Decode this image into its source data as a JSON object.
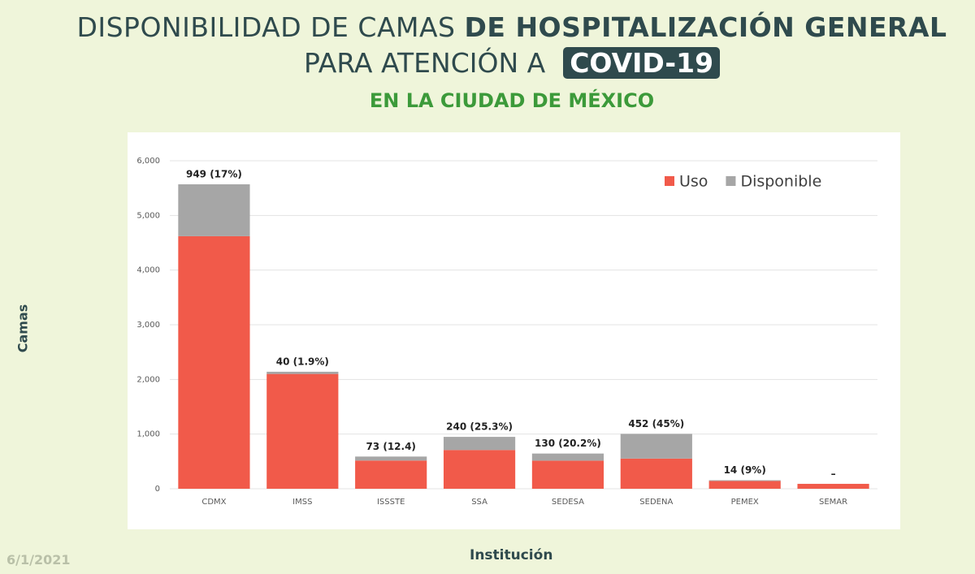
{
  "chart_data": {
    "type": "stacked_bar",
    "title": {
      "regular": "DISPONIBILIDAD DE CAMAS",
      "bold": "DE HOSPITALIZACIÓN GENERAL",
      "line2": "PARA ATENCIÓN A",
      "badge": "COVID-19"
    },
    "subtitle": "EN LA CIUDAD DE MÉXICO",
    "xlabel": "Institución",
    "ylabel": "Camas",
    "date": "6/1/2021",
    "categories": [
      "CDMX",
      "IMSS",
      "ISSSTE",
      "SSA",
      "SEDESA",
      "SEDENA",
      "PEMEX",
      "SEMAR"
    ],
    "series": [
      {
        "name": "Uso",
        "color": "#f15a4a",
        "values": [
          4620,
          2100,
          516,
          709,
          514,
          552,
          142,
          90
        ]
      },
      {
        "name": "Disponible",
        "color": "#a6a6a6",
        "values": [
          949,
          40,
          73,
          240,
          130,
          452,
          14,
          null
        ],
        "value_labels": [
          "949 (17%)",
          "40 (1.9%)",
          "73 (12.4)",
          "240 (25.3%)",
          "130 (20.2%)",
          "452 (45%)",
          "14 (9%)",
          "–"
        ]
      }
    ],
    "ylim": [
      0,
      6000
    ],
    "yticks": [
      0,
      {
        "value": 1000,
        "label": "1,000"
      },
      {
        "value": 2000,
        "label": "2,000"
      },
      {
        "value": 3000,
        "label": "3,000"
      },
      {
        "value": 4000,
        "label": "4,000"
      },
      {
        "value": 5000,
        "label": "5,000"
      },
      {
        "value": 6000,
        "label": "6,000"
      }
    ],
    "grid": true,
    "legend": "top-right"
  }
}
